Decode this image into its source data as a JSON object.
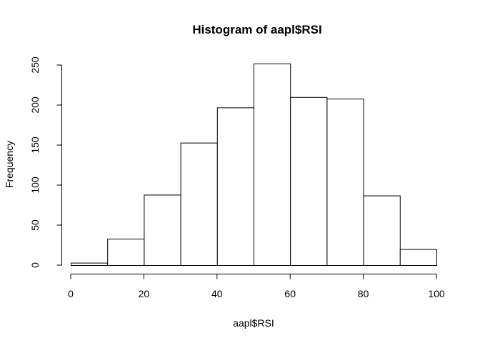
{
  "chart_data": {
    "type": "bar",
    "title": "Histogram of aapl$RSI",
    "xlabel": "aapl$RSI",
    "ylabel": "Frequency",
    "bins": [
      {
        "start": 0,
        "end": 10,
        "count": 3
      },
      {
        "start": 10,
        "end": 20,
        "count": 33
      },
      {
        "start": 20,
        "end": 30,
        "count": 88
      },
      {
        "start": 30,
        "end": 40,
        "count": 153
      },
      {
        "start": 40,
        "end": 50,
        "count": 197
      },
      {
        "start": 50,
        "end": 60,
        "count": 252
      },
      {
        "start": 60,
        "end": 70,
        "count": 210
      },
      {
        "start": 70,
        "end": 80,
        "count": 208
      },
      {
        "start": 80,
        "end": 90,
        "count": 87
      },
      {
        "start": 90,
        "end": 100,
        "count": 20
      }
    ],
    "xlim": [
      0,
      100
    ],
    "ylim": [
      0,
      250
    ],
    "x_ticks": [
      0,
      20,
      40,
      60,
      80,
      100
    ],
    "y_ticks": [
      0,
      50,
      100,
      150,
      200,
      250
    ],
    "grid": false,
    "legend": "none"
  }
}
